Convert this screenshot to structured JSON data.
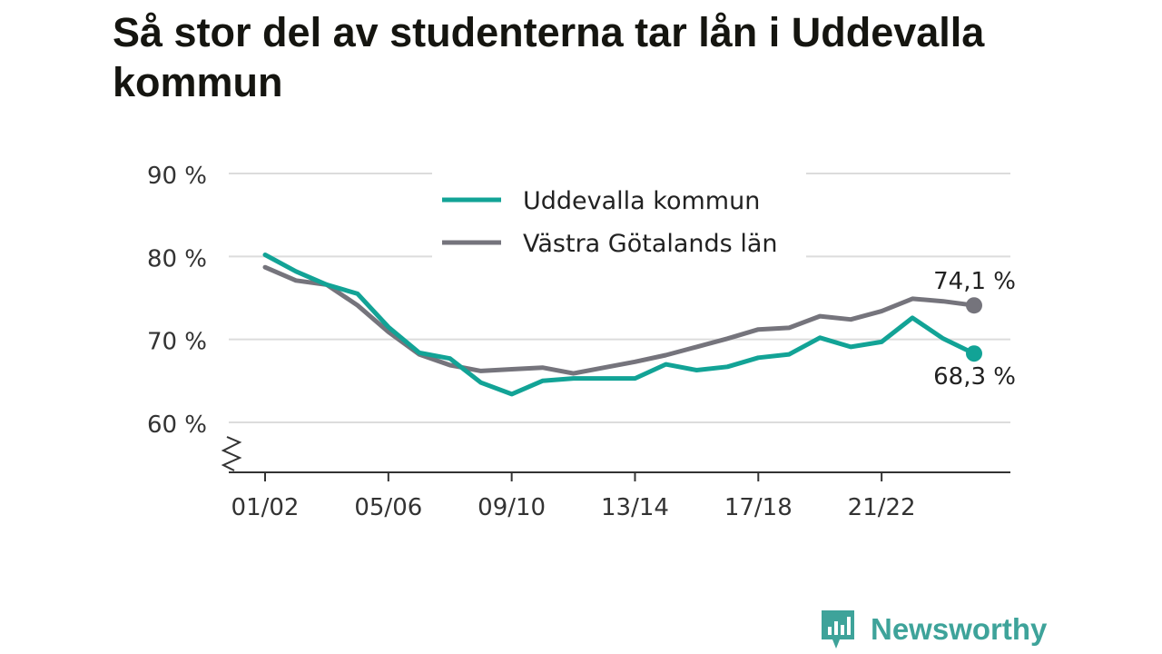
{
  "title": "Så stor del av studenterna tar lån i Uddevalla kommun",
  "brand": {
    "name": "Newsworthy",
    "color": "#3ea39a"
  },
  "chart_data": {
    "type": "line",
    "x": [
      "01/02",
      "02/03",
      "03/04",
      "04/05",
      "05/06",
      "06/07",
      "07/08",
      "08/09",
      "09/10",
      "10/11",
      "11/12",
      "12/13",
      "13/14",
      "14/15",
      "15/16",
      "16/17",
      "17/18",
      "18/19",
      "19/20",
      "20/21",
      "21/22",
      "22/23",
      "23/24",
      "24/25"
    ],
    "x_tick_labels": [
      "01/02",
      "05/06",
      "09/10",
      "13/14",
      "17/18",
      "21/22"
    ],
    "y_tick_labels": [
      "90 %",
      "80 %",
      "70 %",
      "60 %"
    ],
    "y_ticks": [
      90,
      80,
      70,
      60
    ],
    "ylim": [
      54,
      90
    ],
    "y_axis_break": true,
    "grid": true,
    "legend_position": "top-center",
    "series": [
      {
        "name": "Uddevalla kommun",
        "color": "#12a396",
        "values": [
          80.2,
          78.2,
          76.6,
          75.5,
          71.5,
          68.4,
          67.7,
          64.8,
          63.4,
          65.0,
          65.3,
          65.3,
          65.3,
          67.0,
          66.3,
          66.7,
          67.8,
          68.2,
          70.2,
          69.1,
          69.7,
          72.6,
          70.1,
          68.3
        ],
        "end_label": "68,3 %"
      },
      {
        "name": "Västra Götalands län",
        "color": "#75747c",
        "values": [
          78.7,
          77.1,
          76.6,
          74.1,
          70.9,
          68.2,
          66.9,
          66.2,
          66.4,
          66.6,
          65.9,
          66.6,
          67.3,
          68.1,
          69.1,
          70.1,
          71.2,
          71.4,
          72.8,
          72.4,
          73.4,
          74.9,
          74.6,
          74.1
        ],
        "end_label": "74,1 %"
      }
    ]
  }
}
